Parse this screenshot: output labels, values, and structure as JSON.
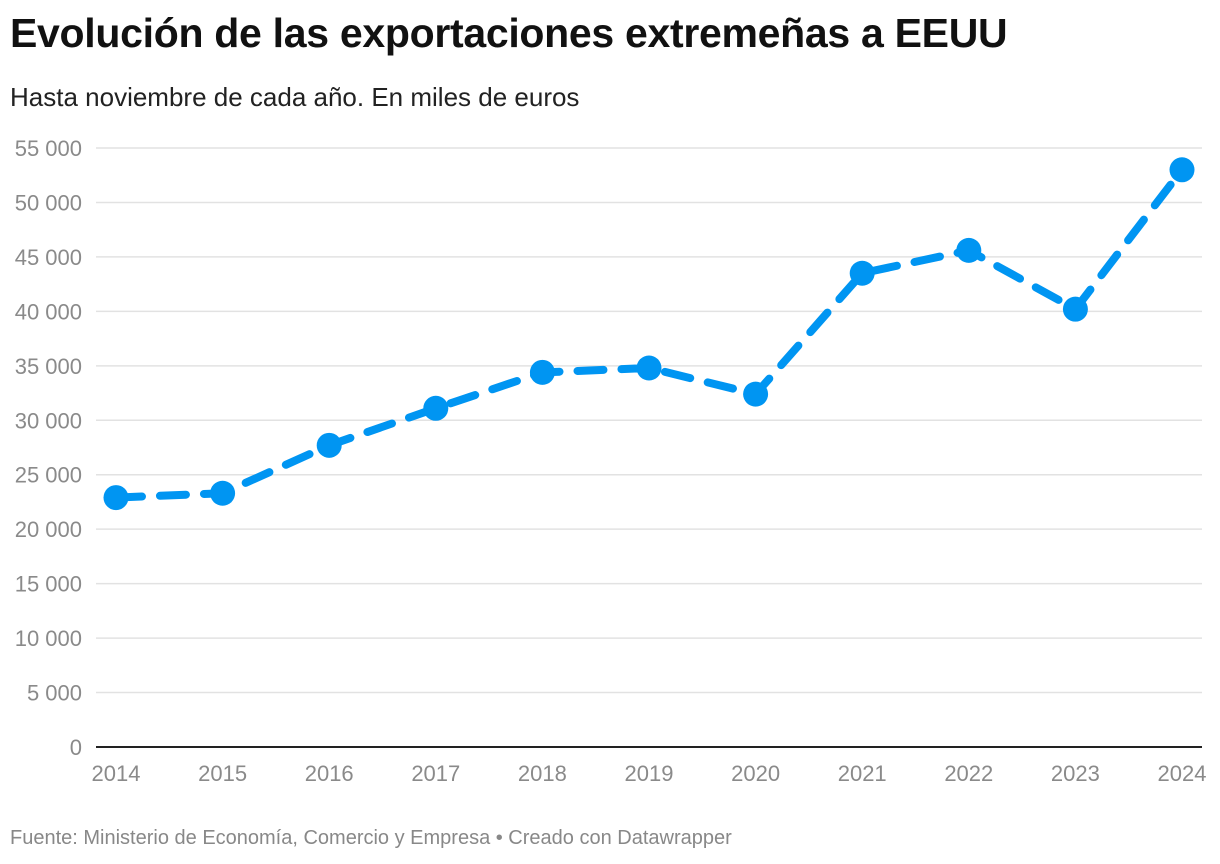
{
  "header": {
    "title": "Evolución de las exportaciones extremeñas a EEUU",
    "subtitle": "Hasta noviembre de cada año. En miles de euros"
  },
  "footer": {
    "source": "Fuente: Ministerio de Economía, Comercio y Empresa • Creado con Datawrapper"
  },
  "colors": {
    "series": "#0095f2",
    "grid": "#e2e2e2",
    "axis": "#222222"
  },
  "chart_data": {
    "type": "line",
    "title": "Evolución de las exportaciones extremeñas a EEUU",
    "subtitle": "Hasta noviembre de cada año. En miles de euros",
    "x": [
      "2014",
      "2015",
      "2016",
      "2017",
      "2018",
      "2019",
      "2020",
      "2021",
      "2022",
      "2023",
      "2024"
    ],
    "series": [
      {
        "values": [
          22900,
          23300,
          27700,
          31100,
          34400,
          34800,
          32400,
          43500,
          45600,
          40200,
          53000
        ]
      }
    ],
    "ylim": [
      0,
      55000
    ],
    "yticks": [
      0,
      5000,
      10000,
      15000,
      20000,
      25000,
      30000,
      35000,
      40000,
      45000,
      50000,
      55000
    ],
    "ytick_labels": [
      "0",
      "5 000",
      "10 000",
      "15 000",
      "20 000",
      "25 000",
      "30 000",
      "35 000",
      "40 000",
      "45 000",
      "50 000",
      "55 000"
    ],
    "line_style": "dashed",
    "markers": true,
    "grid": true,
    "legend": "none"
  }
}
